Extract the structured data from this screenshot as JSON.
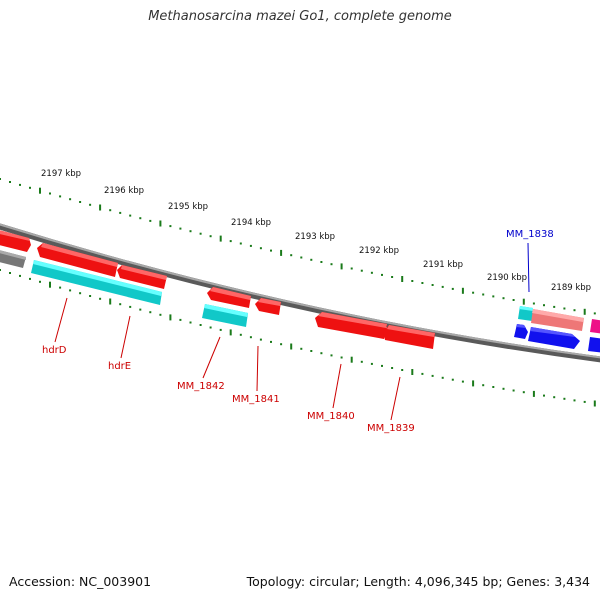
{
  "title": "Methanosarcina mazei Go1, complete genome",
  "footer": {
    "accession": "Accession: NC_003901",
    "stats": "Topology: circular; Length: 4,096,345 bp; Genes: 3,434"
  },
  "scale_labels": [
    "2197 kbp",
    "2196 kbp",
    "2195 kbp",
    "2194 kbp",
    "2193 kbp",
    "2192 kbp",
    "2191 kbp",
    "2190 kbp",
    "2189 kbp"
  ],
  "gene_labels": [
    {
      "text": "hdrD",
      "color": "#cc0000"
    },
    {
      "text": "hdrE",
      "color": "#cc0000"
    },
    {
      "text": "MM_1842",
      "color": "#cc0000"
    },
    {
      "text": "MM_1841",
      "color": "#cc0000"
    },
    {
      "text": "MM_1840",
      "color": "#cc0000"
    },
    {
      "text": "MM_1839",
      "color": "#cc0000"
    },
    {
      "text": "MM_1838",
      "color": "#0000cc"
    }
  ],
  "colors": {
    "backbone": "#8a8a8a",
    "tick": "#1a7a1a",
    "gene_red": "#ee1111",
    "gene_cyan": "#22e5e5",
    "gene_blue": "#1111ee",
    "gene_pink": "#ee7777",
    "gene_magenta": "#ee1188",
    "gene_gray": "#777777"
  }
}
